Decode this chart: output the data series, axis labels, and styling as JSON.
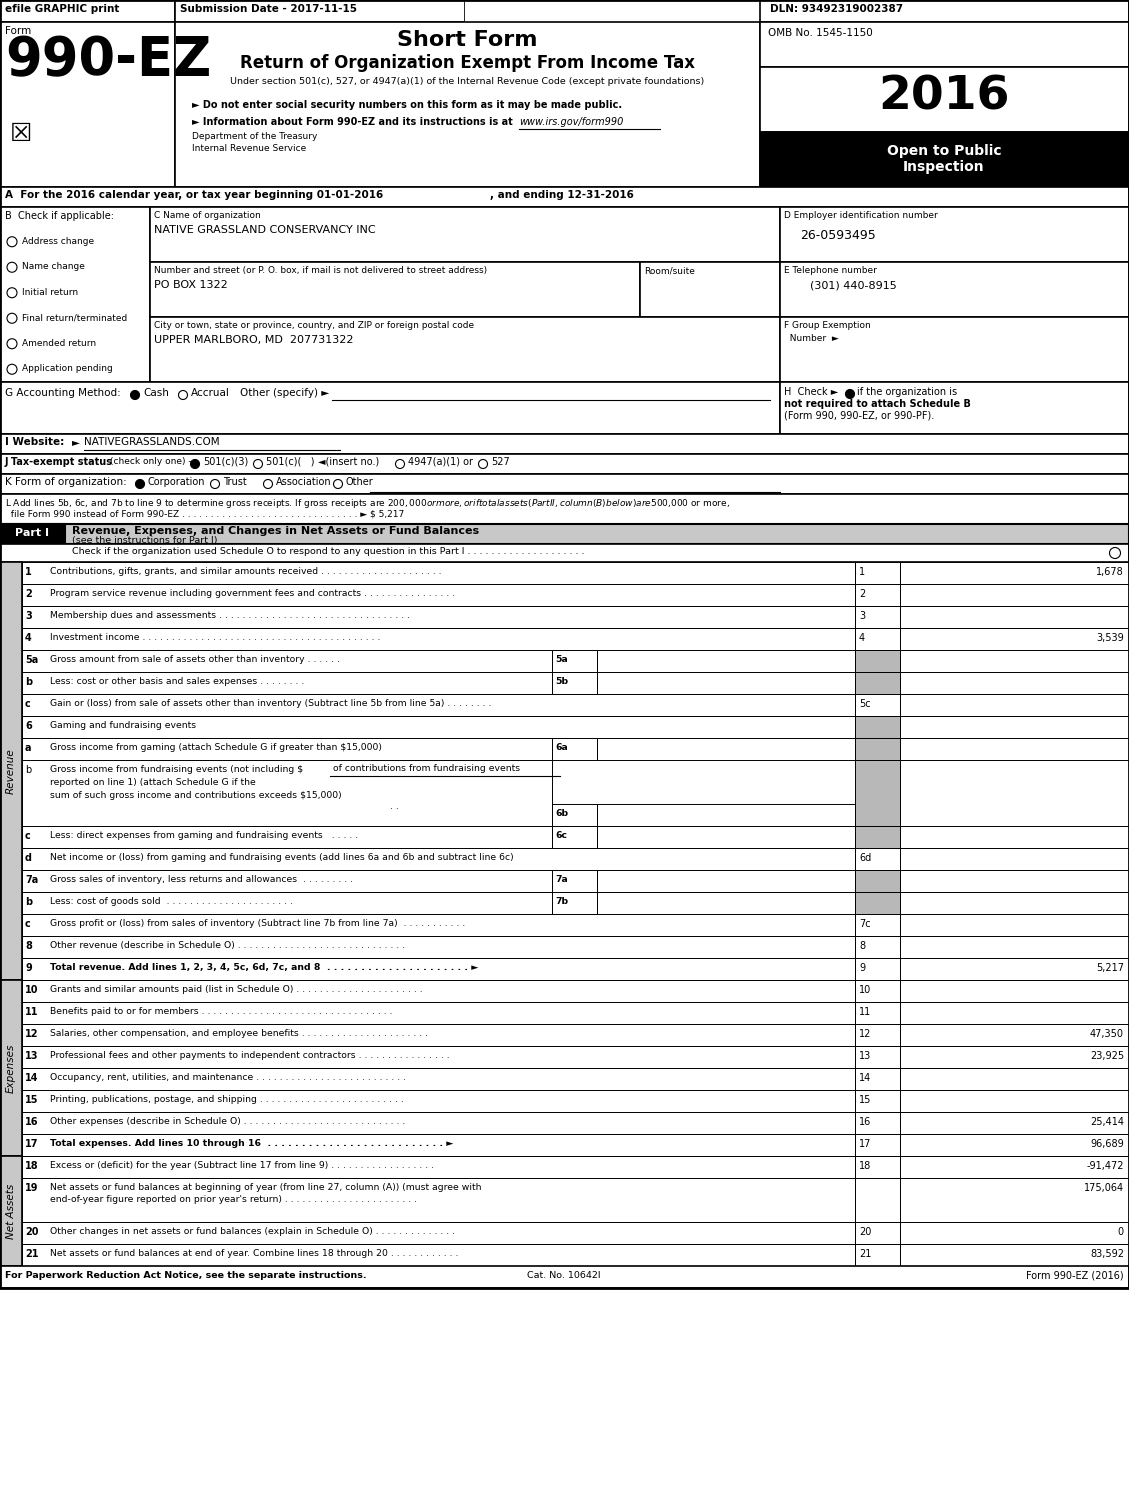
{
  "title_short": "Short Form",
  "title_main": "Return of Organization Exempt From Income Tax",
  "title_sub": "Under section 501(c), 527, or 4947(a)(1) of the Internal Revenue Code (except private foundations)",
  "efile_text": "efile GRAPHIC print",
  "submission_date": "Submission Date - 2017-11-15",
  "dln": "DLN: 93492319002387",
  "omb": "OMB No. 1545-1150",
  "year": "2016",
  "form_number": "990-EZ",
  "org_name": "NATIVE GRASSLAND CONSERVANCY INC",
  "street_value": "PO BOX 1322",
  "city_value": "UPPER MARLBORO, MD  207731322",
  "ein": "26-0593495",
  "phone": "(301) 440-8915",
  "checkboxes_B": [
    "Address change",
    "Name change",
    "Initial return",
    "Final return/terminated",
    "Amended return",
    "Application pending"
  ],
  "footer_left": "For Paperwork Reduction Act Notice, see the separate instructions.",
  "footer_cat": "Cat. No. 10642I",
  "footer_right": "Form 990-EZ (2016)",
  "bg_color": "#ffffff",
  "part_header_bg": "#c8c8c8",
  "side_label_bg": "#c8c8c8",
  "gray_cell": "#b8b8b8",
  "black": "#000000",
  "white": "#ffffff"
}
